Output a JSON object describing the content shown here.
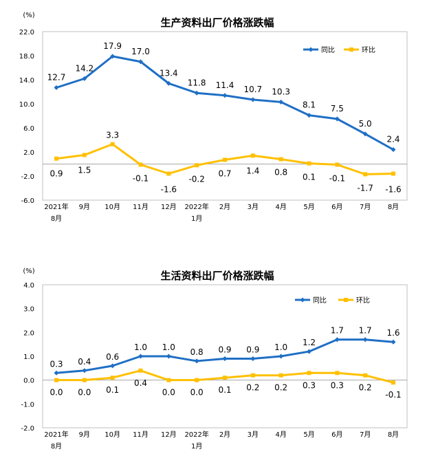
{
  "chart_data": [
    {
      "type": "line",
      "title": "生产资料出厂价格涨跌幅",
      "unit_label": "(%)",
      "yticks": [
        "22.0",
        "18.0",
        "14.0",
        "10.0",
        "6.0",
        "2.0",
        "-2.0",
        "-6.0"
      ],
      "ylim": [
        -6,
        22
      ],
      "categories": [
        {
          "line1": "2021年",
          "line2": "8月"
        },
        {
          "line1": "9月",
          "line2": ""
        },
        {
          "line1": "10月",
          "line2": ""
        },
        {
          "line1": "11月",
          "line2": ""
        },
        {
          "line1": "12月",
          "line2": ""
        },
        {
          "line1": "2022年",
          "line2": "1月"
        },
        {
          "line1": "2月",
          "line2": ""
        },
        {
          "line1": "3月",
          "line2": ""
        },
        {
          "line1": "4月",
          "line2": ""
        },
        {
          "line1": "5月",
          "line2": ""
        },
        {
          "line1": "6月",
          "line2": ""
        },
        {
          "line1": "7月",
          "line2": ""
        },
        {
          "line1": "8月",
          "line2": ""
        }
      ],
      "series": [
        {
          "name": "同比",
          "color": "#1f6fc5",
          "marker": "diamond",
          "values": [
            12.7,
            14.2,
            17.9,
            17.0,
            13.4,
            11.8,
            11.4,
            10.7,
            10.3,
            8.1,
            7.5,
            5.0,
            2.4
          ],
          "labels": [
            "12.7",
            "14.2",
            "17.9",
            "17.0",
            "13.4",
            "11.8",
            "11.4",
            "10.7",
            "10.3",
            "8.1",
            "7.5",
            "5.0",
            "2.4"
          ]
        },
        {
          "name": "环比",
          "color": "#ffc000",
          "marker": "square",
          "values": [
            0.9,
            1.5,
            3.3,
            -0.1,
            -1.6,
            -0.2,
            0.7,
            1.4,
            0.8,
            0.1,
            -0.1,
            -1.7,
            -1.6
          ],
          "labels": [
            "0.9",
            "1.5",
            "3.3",
            "-0.1",
            "-1.6",
            "-0.2",
            "0.7",
            "1.4",
            "0.8",
            "0.1",
            "-0.1",
            "-1.7",
            "-1.6"
          ]
        }
      ],
      "legend": "top-right",
      "grid": false
    },
    {
      "type": "line",
      "title": "生活资料出厂价格涨跌幅",
      "unit_label": "(%)",
      "yticks": [
        "4.0",
        "3.0",
        "2.0",
        "1.0",
        "0.0",
        "-1.0",
        "-2.0"
      ],
      "ylim": [
        -2,
        4
      ],
      "categories": [
        {
          "line1": "2021年",
          "line2": "8月"
        },
        {
          "line1": "9月",
          "line2": ""
        },
        {
          "line1": "10月",
          "line2": ""
        },
        {
          "line1": "11月",
          "line2": ""
        },
        {
          "line1": "12月",
          "line2": ""
        },
        {
          "line1": "2022年",
          "line2": "1月"
        },
        {
          "line1": "2月",
          "line2": ""
        },
        {
          "line1": "3月",
          "line2": ""
        },
        {
          "line1": "4月",
          "line2": ""
        },
        {
          "line1": "5月",
          "line2": ""
        },
        {
          "line1": "6月",
          "line2": ""
        },
        {
          "line1": "7月",
          "line2": ""
        },
        {
          "line1": "8月",
          "line2": ""
        }
      ],
      "series": [
        {
          "name": "同比",
          "color": "#1f6fc5",
          "marker": "diamond",
          "values": [
            0.3,
            0.4,
            0.6,
            1.0,
            1.0,
            0.8,
            0.9,
            0.9,
            1.0,
            1.2,
            1.7,
            1.7,
            1.6
          ],
          "labels": [
            "0.3",
            "0.4",
            "0.6",
            "1.0",
            "1.0",
            "0.8",
            "0.9",
            "0.9",
            "1.0",
            "1.2",
            "1.7",
            "1.7",
            "1.6"
          ]
        },
        {
          "name": "环比",
          "color": "#ffc000",
          "marker": "square",
          "values": [
            0.0,
            0.0,
            0.1,
            0.4,
            0.0,
            0.0,
            0.1,
            0.2,
            0.2,
            0.3,
            0.3,
            0.2,
            -0.1
          ],
          "labels": [
            "0.0",
            "0.0",
            "0.1",
            "0.4",
            "0.0",
            "0.0",
            "0.1",
            "0.2",
            "0.2",
            "0.3",
            "0.3",
            "0.2",
            "-0.1"
          ]
        }
      ],
      "legend": "top-right",
      "grid": false
    }
  ]
}
